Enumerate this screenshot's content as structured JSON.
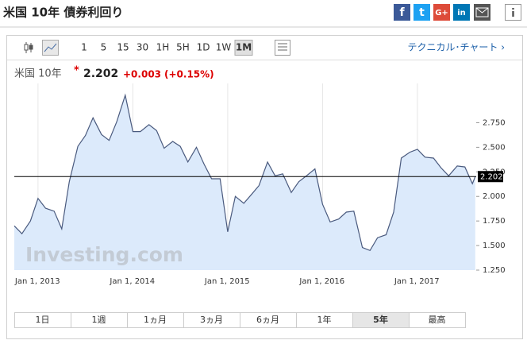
{
  "header": {
    "title": "米国 10年 債券利回り",
    "share": [
      "f",
      "t",
      "G+",
      "in"
    ]
  },
  "toolbar": {
    "periods": [
      "1",
      "5",
      "15",
      "30",
      "1H",
      "5H",
      "1D",
      "1W",
      "1M"
    ],
    "selected": 8,
    "technical": "テクニカル･チャート ›"
  },
  "quote": {
    "name": "米国 10年",
    "star": "*",
    "change": "+0.003",
    "percent": "(+0.15%)"
  },
  "tabs": {
    "items": [
      "1日",
      "1週",
      "1ヵ月",
      "3ヵ月",
      "6ヵ月",
      "1年",
      "5年",
      "最高"
    ],
    "selected": 6
  },
  "chart_data": {
    "type": "area",
    "watermark": "Investing.com",
    "current": 2.202,
    "current_label": "2.202",
    "color": "#4a5a7e",
    "fill": "#dceafb",
    "x": [
      2012.75,
      2012.83,
      2012.92,
      2013.0,
      2013.08,
      2013.17,
      2013.25,
      2013.33,
      2013.42,
      2013.5,
      2013.58,
      2013.67,
      2013.75,
      2013.83,
      2013.92,
      2014.0,
      2014.08,
      2014.17,
      2014.25,
      2014.33,
      2014.42,
      2014.5,
      2014.58,
      2014.67,
      2014.75,
      2014.83,
      2014.92,
      2015.0,
      2015.08,
      2015.17,
      2015.25,
      2015.33,
      2015.42,
      2015.5,
      2015.58,
      2015.67,
      2015.75,
      2015.83,
      2015.92,
      2016.0,
      2016.08,
      2016.17,
      2016.25,
      2016.33,
      2016.42,
      2016.5,
      2016.58,
      2016.67,
      2016.75,
      2016.83,
      2016.92,
      2017.0,
      2017.08,
      2017.17,
      2017.25,
      2017.33,
      2017.42,
      2017.5,
      2017.58,
      2017.61
    ],
    "values": [
      1.7,
      1.62,
      1.75,
      1.98,
      1.88,
      1.85,
      1.67,
      2.15,
      2.51,
      2.62,
      2.8,
      2.63,
      2.57,
      2.76,
      3.03,
      2.66,
      2.66,
      2.73,
      2.67,
      2.49,
      2.56,
      2.51,
      2.35,
      2.5,
      2.33,
      2.18,
      2.18,
      1.64,
      2.0,
      1.93,
      2.02,
      2.11,
      2.35,
      2.21,
      2.23,
      2.04,
      2.15,
      2.21,
      2.28,
      1.92,
      1.74,
      1.77,
      1.84,
      1.85,
      1.48,
      1.45,
      1.58,
      1.61,
      1.84,
      2.39,
      2.45,
      2.48,
      2.4,
      2.39,
      2.29,
      2.21,
      2.31,
      2.3,
      2.13,
      2.202
    ],
    "xlim": [
      2012.75,
      2017.62
    ],
    "ylim": [
      1.25,
      3.15
    ],
    "xticks": [
      {
        "value": 2013,
        "label": "Jan 1, 2013"
      },
      {
        "value": 2014,
        "label": "Jan 1, 2014"
      },
      {
        "value": 2015,
        "label": "Jan 1, 2015"
      },
      {
        "value": 2016,
        "label": "Jan 1, 2016"
      },
      {
        "value": 2017,
        "label": "Jan 1, 2017"
      }
    ],
    "yticks": [
      {
        "value": 1.25,
        "label": "1.250"
      },
      {
        "value": 1.5,
        "label": "1.500"
      },
      {
        "value": 1.75,
        "label": "1.750"
      },
      {
        "value": 2.0,
        "label": "2.000"
      },
      {
        "value": 2.25,
        "label": "2.250"
      },
      {
        "value": 2.5,
        "label": "2.500"
      },
      {
        "value": 2.75,
        "label": "2.750"
      }
    ],
    "grid": "x"
  }
}
